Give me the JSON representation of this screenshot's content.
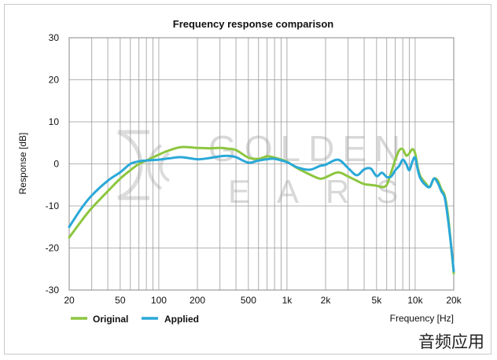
{
  "chart_data": {
    "type": "line",
    "title": "Frequency response comparison",
    "xlabel": "Frequency [Hz]",
    "ylabel": "Response [dB]",
    "x_scale": "log",
    "xlim": [
      20,
      20000
    ],
    "ylim": [
      -30,
      30
    ],
    "grid": true,
    "legend_position": "bottom-left",
    "x_ticks": [
      20,
      50,
      100,
      200,
      500,
      1000,
      2000,
      5000,
      10000,
      20000
    ],
    "x_tick_labels": [
      "20",
      "50",
      "100",
      "200",
      "500",
      "1k",
      "2k",
      "5k",
      "10k",
      "20k"
    ],
    "y_ticks": [
      -30,
      -20,
      -10,
      0,
      10,
      20,
      30
    ],
    "y_tick_labels": [
      "-30",
      "-20",
      "-10",
      "0",
      "10",
      "20",
      "30"
    ],
    "series": [
      {
        "name": "Original",
        "color": "#8dc63f",
        "x": [
          20,
          25,
          30,
          40,
          50,
          60,
          70,
          80,
          100,
          120,
          150,
          200,
          250,
          300,
          350,
          400,
          500,
          600,
          700,
          800,
          1000,
          1200,
          1500,
          1800,
          2000,
          2500,
          3000,
          3500,
          4000,
          4500,
          5000,
          5500,
          6000,
          6500,
          7000,
          7500,
          8000,
          8500,
          9000,
          9500,
          10000,
          10500,
          11000,
          12000,
          13000,
          14000,
          15000,
          16000,
          17000,
          18000,
          19000,
          20000
        ],
        "y": [
          -17.5,
          -13.5,
          -10.5,
          -6.5,
          -3.5,
          -1.5,
          0,
          0.8,
          2.2,
          3.2,
          4,
          3.8,
          3.7,
          3.8,
          3.6,
          3.3,
          1.5,
          1.2,
          1.8,
          1.5,
          0.5,
          -1,
          -2.5,
          -3.5,
          -3.2,
          -2,
          -3,
          -4,
          -4.8,
          -5,
          -5.2,
          -5.5,
          -5,
          -2,
          1,
          3.2,
          3.5,
          2,
          2.5,
          3.5,
          2.5,
          -1,
          -3,
          -4.5,
          -5.5,
          -3.5,
          -4,
          -6,
          -7.5,
          -12,
          -19,
          -26
        ]
      },
      {
        "name": "Applied",
        "color": "#2aa8d8",
        "x": [
          20,
          25,
          30,
          40,
          50,
          60,
          70,
          80,
          100,
          120,
          150,
          200,
          250,
          300,
          350,
          400,
          500,
          600,
          700,
          800,
          1000,
          1200,
          1500,
          1800,
          2000,
          2500,
          3000,
          3500,
          4000,
          4500,
          5000,
          5500,
          6000,
          6500,
          7000,
          7500,
          8000,
          8500,
          9000,
          9500,
          10000,
          10500,
          11000,
          12000,
          13000,
          14000,
          15000,
          16000,
          17000,
          18000,
          19000,
          20000
        ],
        "y": [
          -15,
          -10.5,
          -7.5,
          -4,
          -2,
          0,
          0.6,
          0.8,
          1,
          1.3,
          1.6,
          1.1,
          1.4,
          1.8,
          1.9,
          1.6,
          0.3,
          0.8,
          1.1,
          1.2,
          0.4,
          -0.8,
          -1.4,
          -0.5,
          -0.2,
          1,
          -1,
          -2.7,
          -1.3,
          -1.1,
          -2.9,
          -2.1,
          -3.1,
          -3,
          -1.5,
          -0.5,
          1,
          0,
          -1.5,
          0.5,
          1.5,
          -1.5,
          -3.5,
          -5,
          -5.5,
          -3.5,
          -4.5,
          -6.5,
          -8,
          -13,
          -19,
          -25.5
        ]
      }
    ]
  },
  "watermark": {
    "top_text": "GOLDEN",
    "bottom_text": "EARS"
  },
  "footer": {
    "text": "音频应用"
  }
}
